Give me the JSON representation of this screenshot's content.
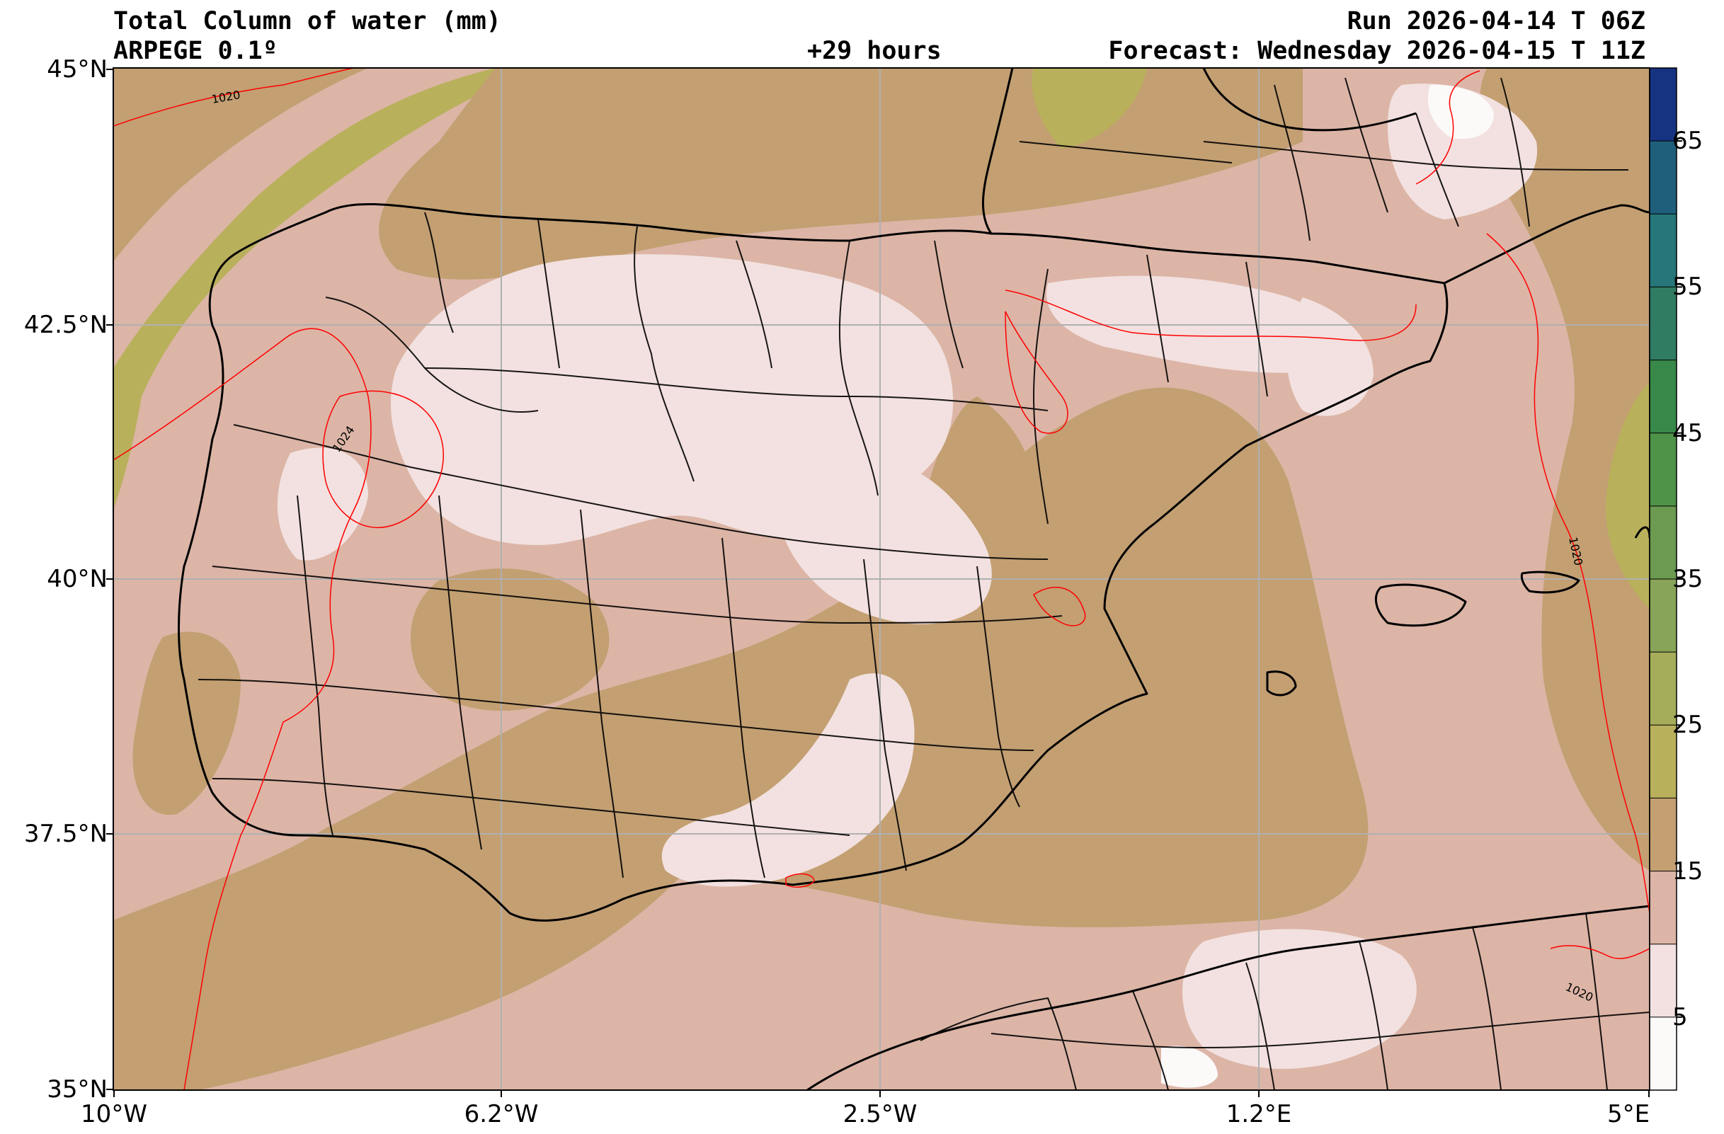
{
  "header": {
    "title": "Total Column of water (mm)",
    "model": "ARPEGE 0.1º",
    "lead": "+29 hours",
    "run": "Run 2026-04-14 T 06Z",
    "forecast": "Forecast: Wednesday 2026-04-15 T 11Z"
  },
  "axes": {
    "lat_labels": [
      "45°N",
      "42.5°N",
      "40°N",
      "37.5°N",
      "35°N"
    ],
    "lon_labels": [
      "10°W",
      "6.2°W",
      "2.5°W",
      "1.2°E",
      "5°E"
    ]
  },
  "colorbar": {
    "tick_labels": [
      "5",
      "15",
      "25",
      "35",
      "45",
      "55",
      "65"
    ],
    "levels": [
      0,
      5,
      10,
      15,
      20,
      25,
      30,
      35,
      40,
      45,
      50,
      55,
      60,
      65,
      70
    ],
    "colors": [
      "#fcf9f9",
      "#f2e1e0",
      "#dcb5a6",
      "#c39f72",
      "#b9b05c",
      "#a5ad5b",
      "#88a458",
      "#6b9a50",
      "#4f9349",
      "#388849",
      "#2f7c62",
      "#26767a",
      "#1f5f7c",
      "#163381",
      "#000000"
    ]
  },
  "isobars": {
    "labels": [
      "1020",
      "1024",
      "1020",
      "1020"
    ],
    "color": "#ff0000"
  },
  "colors": {
    "dry": "#c39f72",
    "mid": "#dcb5a6",
    "light": "#f2e1e0",
    "moist": "#b9b05c",
    "border": "#000000",
    "grid": "#b0b0b0"
  }
}
